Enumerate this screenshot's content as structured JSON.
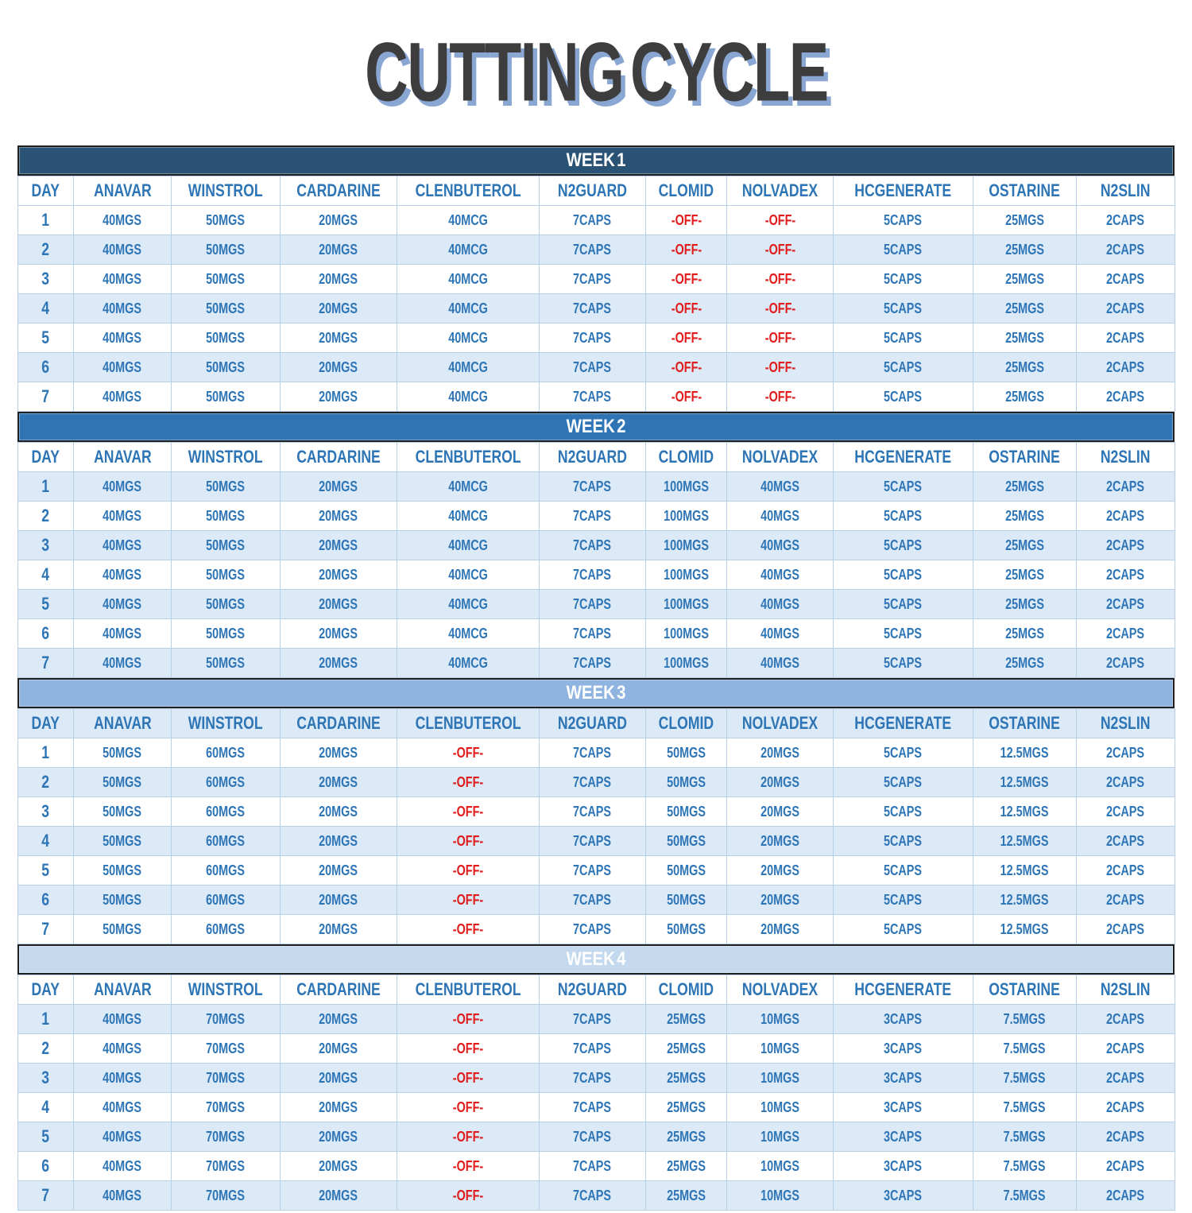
{
  "title": "CUTTING CYCLE",
  "colors": {
    "text_blue": "#2E75B6",
    "off_red": "#E01C1C",
    "band_blue": "#DCE9F6",
    "grid_blue": "#B7CFE7",
    "bar_border": "#1F1F1F",
    "bar_text": "#FFFFFF",
    "title_gray": "#3D3D3D",
    "title_shadow_blue": "#8AA6D3"
  },
  "columns": [
    "DAY",
    "ANAVAR",
    "WINSTROL",
    "CARDARINE",
    "CLENBUTEROL",
    "N2GUARD",
    "CLOMID",
    "NOLVADEX",
    "HCGENERATE",
    "OSTARINE",
    "N2SLIN"
  ],
  "off_value": "-OFF-",
  "weeks": [
    {
      "label": "WEEK 1",
      "bar_color": "#2A5274",
      "header_shaded": false,
      "first_day_shaded": false,
      "rows": [
        [
          "1",
          "40MGS",
          "50MGS",
          "20MGS",
          "40MCG",
          "7CAPS",
          "-OFF-",
          "-OFF-",
          "5CAPS",
          "25MGS",
          "2CAPS"
        ],
        [
          "2",
          "40MGS",
          "50MGS",
          "20MGS",
          "40MCG",
          "7CAPS",
          "-OFF-",
          "-OFF-",
          "5CAPS",
          "25MGS",
          "2CAPS"
        ],
        [
          "3",
          "40MGS",
          "50MGS",
          "20MGS",
          "40MCG",
          "7CAPS",
          "-OFF-",
          "-OFF-",
          "5CAPS",
          "25MGS",
          "2CAPS"
        ],
        [
          "4",
          "40MGS",
          "50MGS",
          "20MGS",
          "40MCG",
          "7CAPS",
          "-OFF-",
          "-OFF-",
          "5CAPS",
          "25MGS",
          "2CAPS"
        ],
        [
          "5",
          "40MGS",
          "50MGS",
          "20MGS",
          "40MCG",
          "7CAPS",
          "-OFF-",
          "-OFF-",
          "5CAPS",
          "25MGS",
          "2CAPS"
        ],
        [
          "6",
          "40MGS",
          "50MGS",
          "20MGS",
          "40MCG",
          "7CAPS",
          "-OFF-",
          "-OFF-",
          "5CAPS",
          "25MGS",
          "2CAPS"
        ],
        [
          "7",
          "40MGS",
          "50MGS",
          "20MGS",
          "40MCG",
          "7CAPS",
          "-OFF-",
          "-OFF-",
          "5CAPS",
          "25MGS",
          "2CAPS"
        ]
      ]
    },
    {
      "label": "WEEK 2",
      "bar_color": "#2F74B5",
      "header_shaded": false,
      "first_day_shaded": true,
      "rows": [
        [
          "1",
          "40MGS",
          "50MGS",
          "20MGS",
          "40MCG",
          "7CAPS",
          "100MGS",
          "40MGS",
          "5CAPS",
          "25MGS",
          "2CAPS"
        ],
        [
          "2",
          "40MGS",
          "50MGS",
          "20MGS",
          "40MCG",
          "7CAPS",
          "100MGS",
          "40MGS",
          "5CAPS",
          "25MGS",
          "2CAPS"
        ],
        [
          "3",
          "40MGS",
          "50MGS",
          "20MGS",
          "40MCG",
          "7CAPS",
          "100MGS",
          "40MGS",
          "5CAPS",
          "25MGS",
          "2CAPS"
        ],
        [
          "4",
          "40MGS",
          "50MGS",
          "20MGS",
          "40MCG",
          "7CAPS",
          "100MGS",
          "40MGS",
          "5CAPS",
          "25MGS",
          "2CAPS"
        ],
        [
          "5",
          "40MGS",
          "50MGS",
          "20MGS",
          "40MCG",
          "7CAPS",
          "100MGS",
          "40MGS",
          "5CAPS",
          "25MGS",
          "2CAPS"
        ],
        [
          "6",
          "40MGS",
          "50MGS",
          "20MGS",
          "40MCG",
          "7CAPS",
          "100MGS",
          "40MGS",
          "5CAPS",
          "25MGS",
          "2CAPS"
        ],
        [
          "7",
          "40MGS",
          "50MGS",
          "20MGS",
          "40MCG",
          "7CAPS",
          "100MGS",
          "40MGS",
          "5CAPS",
          "25MGS",
          "2CAPS"
        ]
      ]
    },
    {
      "label": "WEEK 3",
      "bar_color": "#8FB4E0",
      "header_shaded": true,
      "first_day_shaded": false,
      "rows": [
        [
          "1",
          "50MGS",
          "60MGS",
          "20MGS",
          "-OFF-",
          "7CAPS",
          "50MGS",
          "20MGS",
          "5CAPS",
          "12.5MGS",
          "2CAPS"
        ],
        [
          "2",
          "50MGS",
          "60MGS",
          "20MGS",
          "-OFF-",
          "7CAPS",
          "50MGS",
          "20MGS",
          "5CAPS",
          "12.5MGS",
          "2CAPS"
        ],
        [
          "3",
          "50MGS",
          "60MGS",
          "20MGS",
          "-OFF-",
          "7CAPS",
          "50MGS",
          "20MGS",
          "5CAPS",
          "12.5MGS",
          "2CAPS"
        ],
        [
          "4",
          "50MGS",
          "60MGS",
          "20MGS",
          "-OFF-",
          "7CAPS",
          "50MGS",
          "20MGS",
          "5CAPS",
          "12.5MGS",
          "2CAPS"
        ],
        [
          "5",
          "50MGS",
          "60MGS",
          "20MGS",
          "-OFF-",
          "7CAPS",
          "50MGS",
          "20MGS",
          "5CAPS",
          "12.5MGS",
          "2CAPS"
        ],
        [
          "6",
          "50MGS",
          "60MGS",
          "20MGS",
          "-OFF-",
          "7CAPS",
          "50MGS",
          "20MGS",
          "5CAPS",
          "12.5MGS",
          "2CAPS"
        ],
        [
          "7",
          "50MGS",
          "60MGS",
          "20MGS",
          "-OFF-",
          "7CAPS",
          "50MGS",
          "20MGS",
          "5CAPS",
          "12.5MGS",
          "2CAPS"
        ]
      ]
    },
    {
      "label": "WEEK 4",
      "bar_color": "#C4D9EE",
      "header_shaded": false,
      "first_day_shaded": true,
      "rows": [
        [
          "1",
          "40MGS",
          "70MGS",
          "20MGS",
          "-OFF-",
          "7CAPS",
          "25MGS",
          "10MGS",
          "3CAPS",
          "7.5MGS",
          "2CAPS"
        ],
        [
          "2",
          "40MGS",
          "70MGS",
          "20MGS",
          "-OFF-",
          "7CAPS",
          "25MGS",
          "10MGS",
          "3CAPS",
          "7.5MGS",
          "2CAPS"
        ],
        [
          "3",
          "40MGS",
          "70MGS",
          "20MGS",
          "-OFF-",
          "7CAPS",
          "25MGS",
          "10MGS",
          "3CAPS",
          "7.5MGS",
          "2CAPS"
        ],
        [
          "4",
          "40MGS",
          "70MGS",
          "20MGS",
          "-OFF-",
          "7CAPS",
          "25MGS",
          "10MGS",
          "3CAPS",
          "7.5MGS",
          "2CAPS"
        ],
        [
          "5",
          "40MGS",
          "70MGS",
          "20MGS",
          "-OFF-",
          "7CAPS",
          "25MGS",
          "10MGS",
          "3CAPS",
          "7.5MGS",
          "2CAPS"
        ],
        [
          "6",
          "40MGS",
          "70MGS",
          "20MGS",
          "-OFF-",
          "7CAPS",
          "25MGS",
          "10MGS",
          "3CAPS",
          "7.5MGS",
          "2CAPS"
        ],
        [
          "7",
          "40MGS",
          "70MGS",
          "20MGS",
          "-OFF-",
          "7CAPS",
          "25MGS",
          "10MGS",
          "3CAPS",
          "7.5MGS",
          "2CAPS"
        ]
      ]
    }
  ]
}
